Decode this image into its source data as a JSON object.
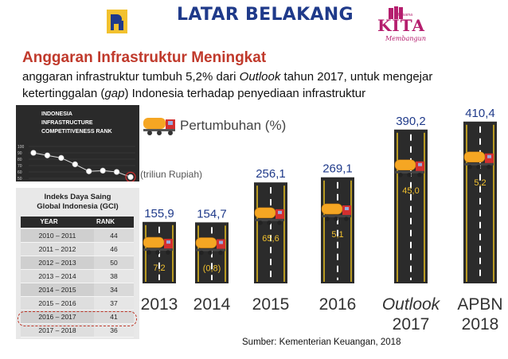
{
  "header": {
    "title": "LATAR BELAKANG",
    "logo_right_text": "KITA",
    "logo_right_small": "Bersama",
    "logo_right_tagline": "Membangun"
  },
  "section": {
    "subtitle": "Anggaran Infrastruktur Meningkat",
    "desc_part1": "anggaran infrastruktur tumbuh 5,2% dari ",
    "desc_italic1": "Outlook",
    "desc_part2": " tahun 2017, untuk mengejar ketertinggalan (",
    "desc_italic2": "gap",
    "desc_part3": ") Indonesia terhadap penyediaan infrastruktur"
  },
  "rank_chart": {
    "title_line1": "INDONESIA",
    "title_line2": "INFRASTRUCTURE",
    "title_line3": "COMPETITIVENESS  RANK",
    "y_ticks": [
      "50",
      "60",
      "70",
      "80",
      "90",
      "100"
    ],
    "values": [
      90,
      86,
      82,
      72,
      61,
      62,
      60,
      52
    ]
  },
  "gci": {
    "title_line1": "Indeks Daya Saing",
    "title_line2": "Global Indonesia (GCI)",
    "col_year": "YEAR",
    "col_rank": "RANK",
    "rows": [
      {
        "year": "2010 – 2011",
        "rank": "44"
      },
      {
        "year": "2011 – 2012",
        "rank": "46"
      },
      {
        "year": "2012 – 2013",
        "rank": "50"
      },
      {
        "year": "2013 – 2014",
        "rank": "38"
      },
      {
        "year": "2014 – 2015",
        "rank": "34"
      },
      {
        "year": "2015 – 2016",
        "rank": "37"
      },
      {
        "year": "2016 – 2017",
        "rank": "41"
      },
      {
        "year": "2017 – 2018",
        "rank": "36"
      }
    ]
  },
  "legend": {
    "growth_label": "Pertumbuhan (%)",
    "unit_label": "(triliun Rupiah)"
  },
  "chart_data": {
    "type": "bar",
    "categories": [
      "2013",
      "2014",
      "2015",
      "2016",
      "Outlook 2017",
      "APBN 2018"
    ],
    "category_line1": [
      "2013",
      "2014",
      "2015",
      "2016",
      "Outlook",
      "APBN"
    ],
    "category_line2": [
      "",
      "",
      "",
      "",
      "2017",
      "2018"
    ],
    "values": [
      155.9,
      154.7,
      256.1,
      269.1,
      390.2,
      410.4
    ],
    "value_labels": [
      "155,9",
      "154,7",
      "256,1",
      "269,1",
      "390,2",
      "410,4"
    ],
    "growth_labels": [
      "7,2",
      "(0,8)",
      "65,6",
      "5,1",
      "45,0",
      "5,2"
    ],
    "ylabel": "(triliun Rupiah)",
    "ylim": [
      0,
      420
    ],
    "colors": {
      "bar": "#2b2b2b",
      "value_label": "#1f3a8a",
      "growth_label": "#f2c12e",
      "lane": "#e8c020",
      "truck_cab": "#d32f2f",
      "truck_tank": "#f5a623"
    }
  },
  "footer": {
    "source": "Sumber: Kementerian Keuangan, 2018"
  }
}
